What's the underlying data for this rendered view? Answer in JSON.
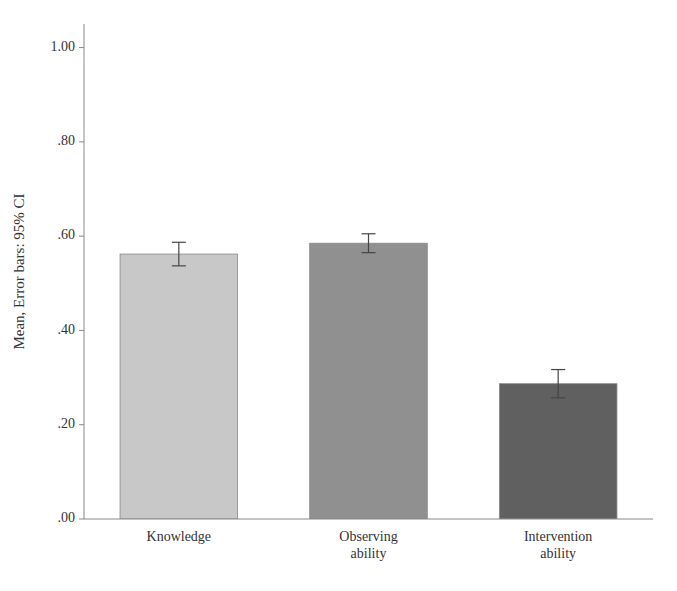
{
  "chart_data": {
    "type": "bar",
    "ylabel": "Mean, Error bars: 95% CI",
    "categories": [
      "Knowledge",
      "Observing\nability",
      "Intervention\nability"
    ],
    "values": [
      0.562,
      0.585,
      0.287
    ],
    "errors": [
      0.025,
      0.02,
      0.03
    ],
    "colors": [
      "#c8c8c8",
      "#909090",
      "#606060"
    ],
    "ylim": [
      0.0,
      1.05
    ],
    "yticks": [
      {
        "value": 0.0,
        "label": ".00"
      },
      {
        "value": 0.2,
        "label": ".20"
      },
      {
        "value": 0.4,
        "label": ".40"
      },
      {
        "value": 0.6,
        "label": ".60"
      },
      {
        "value": 0.8,
        "label": ".80"
      },
      {
        "value": 1.0,
        "label": "1.00"
      }
    ],
    "grid": false
  }
}
